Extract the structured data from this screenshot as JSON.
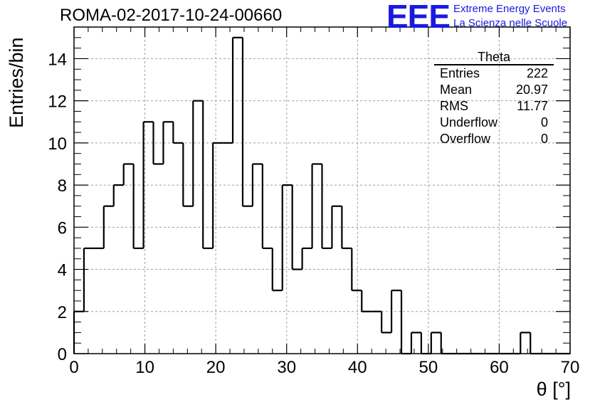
{
  "title": "ROMA-02-2017-10-24-00660",
  "logo": {
    "mark": "EEE",
    "line1": "Extreme Energy Events",
    "line2": "La Scienza nelle Scuole"
  },
  "stats": {
    "name": "Theta",
    "rows": [
      {
        "label": "Entries",
        "value": "222"
      },
      {
        "label": "Mean",
        "value": "20.97"
      },
      {
        "label": "RMS",
        "value": "11.77"
      },
      {
        "label": "Underflow",
        "value": "0"
      },
      {
        "label": "Overflow",
        "value": "0"
      }
    ]
  },
  "colors": {
    "logo": "#1a1adf",
    "line": "#000000",
    "grid": "#a0a0a0"
  },
  "chart_data": {
    "type": "histogram",
    "xlabel": "θ [°]",
    "ylabel": "Entries/bin",
    "xlim": [
      0,
      70
    ],
    "ylim": [
      0,
      15.5
    ],
    "grid": true,
    "bin_edges": [
      0,
      1.4,
      2.8,
      4.2,
      5.6,
      7.0,
      8.4,
      9.8,
      11.2,
      12.6,
      14.0,
      15.4,
      16.8,
      18.2,
      19.6,
      21.0,
      22.4,
      23.8,
      25.2,
      26.6,
      28.0,
      29.4,
      30.8,
      32.2,
      33.6,
      35.0,
      36.4,
      37.8,
      39.2,
      40.6,
      42.0,
      43.4,
      44.8,
      46.2,
      47.6,
      49.0,
      50.4,
      51.8,
      53.2,
      54.6,
      56.0,
      57.4,
      58.8,
      60.2,
      61.6,
      63.0,
      64.4,
      65.8,
      67.2,
      68.6,
      70.0
    ],
    "values": [
      2,
      5,
      5,
      7,
      8,
      9,
      5,
      11,
      9,
      11,
      10,
      7,
      12,
      5,
      10,
      10,
      15,
      7,
      9,
      5,
      3,
      8,
      4,
      5,
      9,
      5,
      7,
      5,
      3,
      2,
      2,
      1,
      3,
      0,
      1,
      0,
      1,
      0,
      0,
      0,
      0,
      0,
      0,
      0,
      0,
      1,
      0,
      0,
      0,
      0
    ],
    "xticks": [
      0,
      10,
      20,
      30,
      40,
      50,
      60,
      70
    ],
    "yticks": [
      0,
      2,
      4,
      6,
      8,
      10,
      12,
      14
    ]
  }
}
